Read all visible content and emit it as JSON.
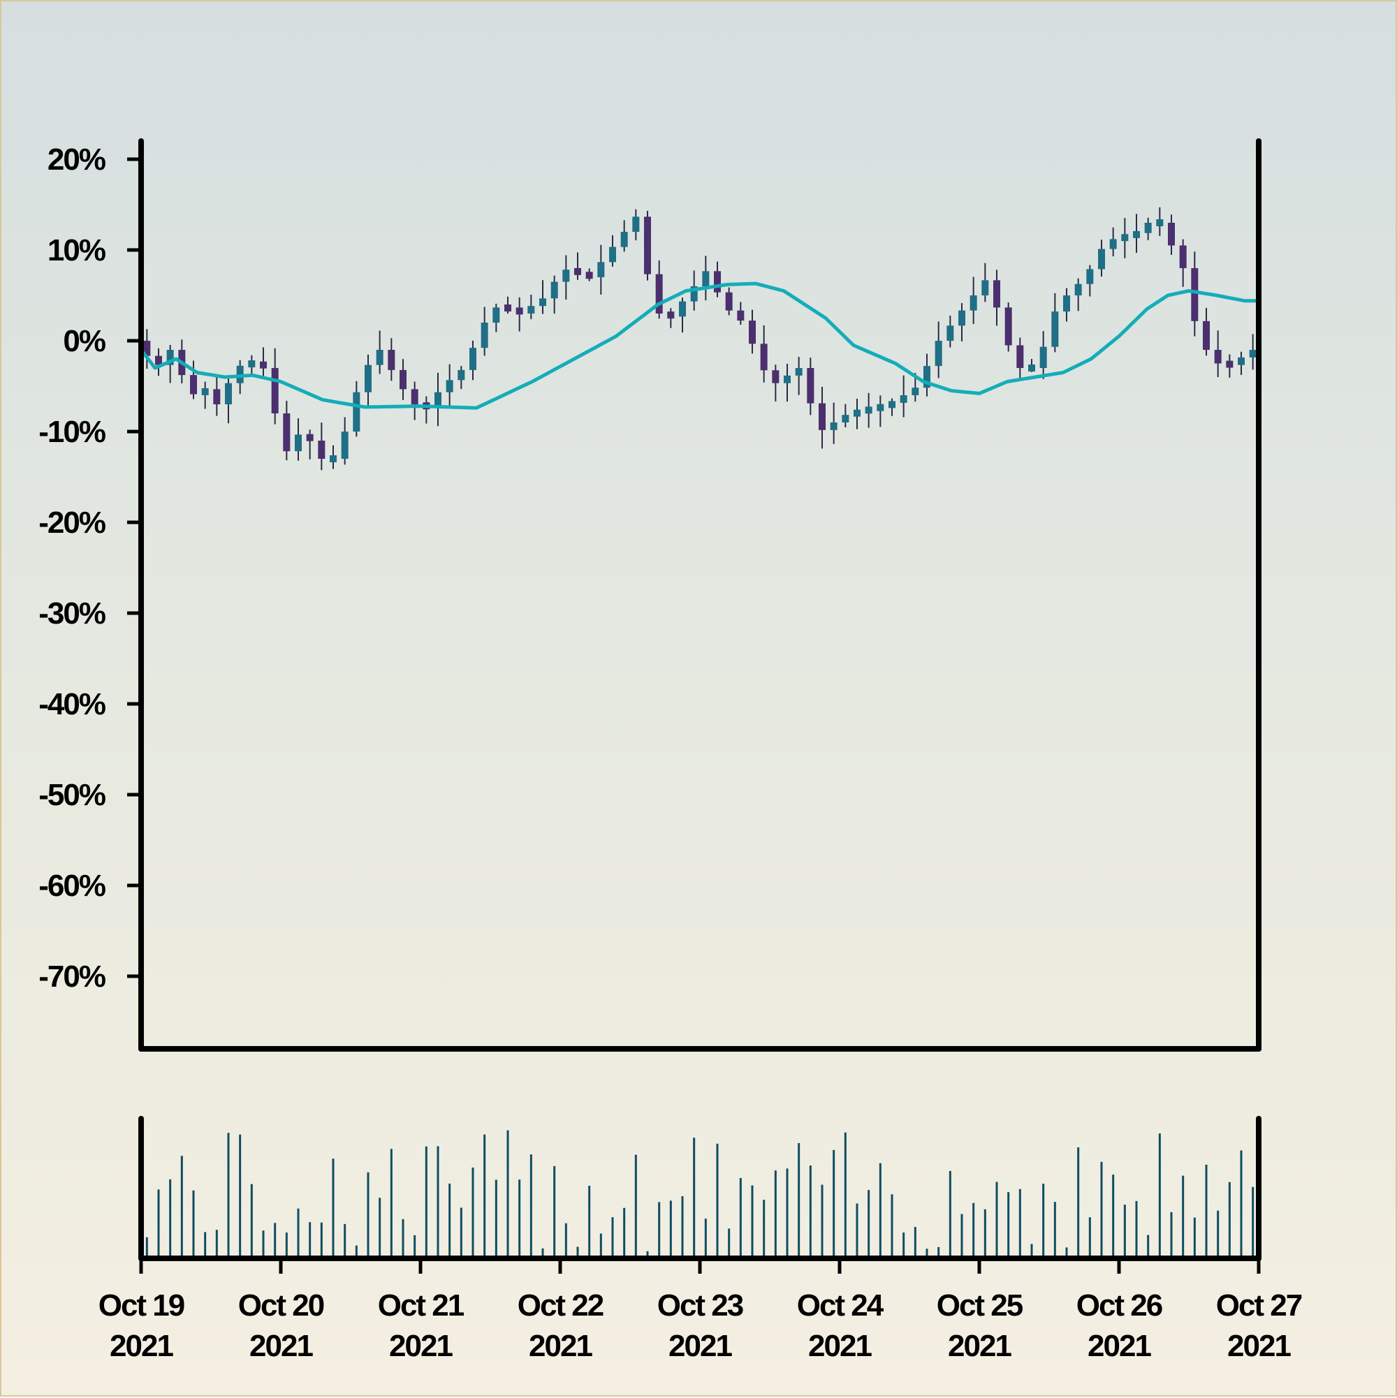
{
  "colors": {
    "candle_up": "#1f6f86",
    "candle_down": "#4b2f6e",
    "wick": "#2b2b44",
    "ma_line": "#14adb8",
    "volume": "#0f4d63",
    "axis": "#000000"
  },
  "chart_data": {
    "type": "candlestick",
    "title": "",
    "xlabel": "",
    "ylabel": "",
    "price_panel": {
      "ylim": [
        -78,
        22
      ],
      "yticks": [
        20,
        10,
        0,
        -10,
        -20,
        -30,
        -40,
        -50,
        -60,
        -70
      ],
      "ytick_labels": [
        "20%",
        "10%",
        "0%",
        "-10%",
        "-20%",
        "-30%",
        "-40%",
        "-50%",
        "-60%",
        "-70%"
      ],
      "grid": false
    },
    "x_range": [
      "2021-10-19",
      "2021-10-27"
    ],
    "xtick_labels": [
      [
        "Oct 19",
        "2021"
      ],
      [
        "Oct 20",
        "2021"
      ],
      [
        "Oct 21",
        "2021"
      ],
      [
        "Oct 22",
        "2021"
      ],
      [
        "Oct 23",
        "2021"
      ],
      [
        "Oct 24",
        "2021"
      ],
      [
        "Oct 25",
        "2021"
      ],
      [
        "Oct 26",
        "2021"
      ],
      [
        "Oct 27",
        "2021"
      ]
    ],
    "candle_interval_hours": 2,
    "close_path_percent": [
      [
        0,
        0
      ],
      [
        0.15,
        -3
      ],
      [
        0.25,
        -1
      ],
      [
        0.4,
        -6
      ],
      [
        0.55,
        -5
      ],
      [
        0.6,
        -8
      ],
      [
        0.7,
        -3
      ],
      [
        0.9,
        -2
      ],
      [
        1.0,
        -8
      ],
      [
        1.1,
        -13
      ],
      [
        1.2,
        -9
      ],
      [
        1.3,
        -13
      ],
      [
        1.45,
        -13
      ],
      [
        1.55,
        -7
      ],
      [
        1.65,
        -3
      ],
      [
        1.75,
        -1
      ],
      [
        1.9,
        -5
      ],
      [
        2.05,
        -8
      ],
      [
        2.2,
        -5
      ],
      [
        2.35,
        -3
      ],
      [
        2.5,
        2
      ],
      [
        2.6,
        4
      ],
      [
        2.75,
        3
      ],
      [
        2.95,
        5
      ],
      [
        3.05,
        8
      ],
      [
        3.25,
        7
      ],
      [
        3.5,
        12
      ],
      [
        3.6,
        14
      ],
      [
        3.7,
        4
      ],
      [
        3.8,
        2
      ],
      [
        3.95,
        5
      ],
      [
        4.1,
        8
      ],
      [
        4.2,
        4
      ],
      [
        4.35,
        2
      ],
      [
        4.55,
        -5
      ],
      [
        4.75,
        -3
      ],
      [
        4.9,
        -10
      ],
      [
        5.1,
        -8
      ],
      [
        5.4,
        -7
      ],
      [
        5.6,
        -5
      ],
      [
        5.75,
        0
      ],
      [
        5.95,
        4
      ],
      [
        6.1,
        7
      ],
      [
        6.3,
        -3
      ],
      [
        6.45,
        -3
      ],
      [
        6.6,
        4
      ],
      [
        6.8,
        7
      ],
      [
        6.95,
        11
      ],
      [
        7.2,
        12
      ],
      [
        7.3,
        14
      ],
      [
        7.5,
        8
      ],
      [
        7.6,
        1
      ],
      [
        7.7,
        -2
      ],
      [
        7.8,
        -3
      ],
      [
        8.0,
        -1
      ]
    ],
    "moving_average_percent": [
      [
        0,
        -1
      ],
      [
        0.1,
        -3
      ],
      [
        0.25,
        -2
      ],
      [
        0.4,
        -3.5
      ],
      [
        0.6,
        -4
      ],
      [
        0.8,
        -3.8
      ],
      [
        1.0,
        -4.5
      ],
      [
        1.3,
        -6.5
      ],
      [
        1.6,
        -7.3
      ],
      [
        2.0,
        -7.2
      ],
      [
        2.4,
        -7.4
      ],
      [
        2.8,
        -4.5
      ],
      [
        3.1,
        -2
      ],
      [
        3.4,
        0.5
      ],
      [
        3.7,
        4
      ],
      [
        3.9,
        5.5
      ],
      [
        4.2,
        6.2
      ],
      [
        4.4,
        6.3
      ],
      [
        4.6,
        5.5
      ],
      [
        4.9,
        2.5
      ],
      [
        5.1,
        -0.5
      ],
      [
        5.4,
        -2.5
      ],
      [
        5.6,
        -4.5
      ],
      [
        5.8,
        -5.5
      ],
      [
        6.0,
        -5.8
      ],
      [
        6.2,
        -4.5
      ],
      [
        6.4,
        -4
      ],
      [
        6.6,
        -3.5
      ],
      [
        6.8,
        -2
      ],
      [
        7.0,
        0.5
      ],
      [
        7.2,
        3.5
      ],
      [
        7.35,
        5
      ],
      [
        7.5,
        5.5
      ],
      [
        7.7,
        5
      ],
      [
        7.9,
        4.4
      ]
    ],
    "volume_panel": {
      "grid": false
    }
  }
}
